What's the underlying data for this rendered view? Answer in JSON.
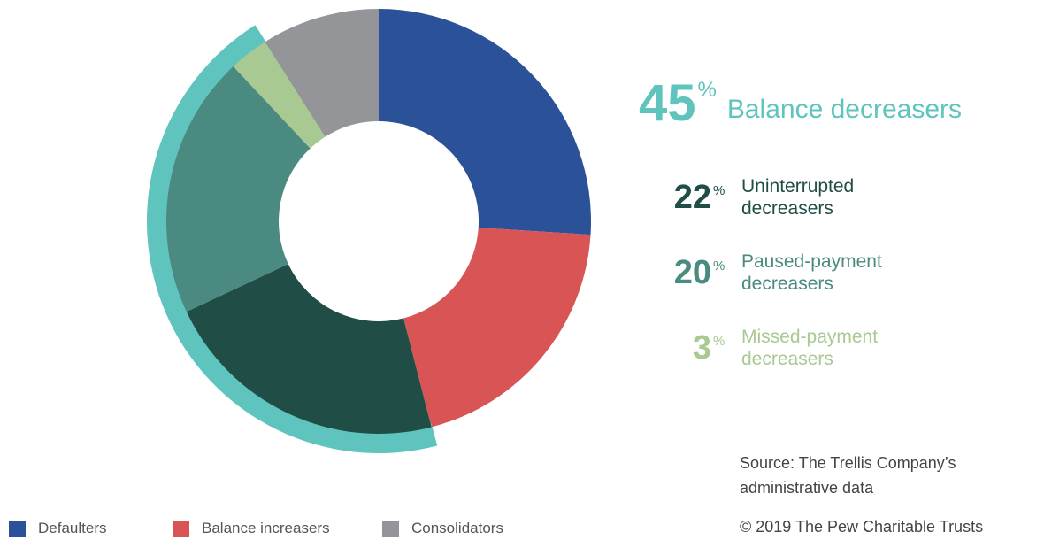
{
  "chart_data": {
    "type": "donut",
    "percent_sign": "%",
    "segments": [
      {
        "name": "Defaulters",
        "value": 26,
        "color": "#2b5299"
      },
      {
        "name": "Balance increasers",
        "value": 20,
        "color": "#d95555"
      },
      {
        "name": "Balance decreasers",
        "value": 45,
        "color": "#5ec4bd",
        "parts": [
          {
            "name": "Uninterrupted decreasers",
            "value": 22,
            "color": "#214d47"
          },
          {
            "name": "Paused-payment decreasers",
            "value": 20,
            "color": "#4a8a80"
          },
          {
            "name": "Missed-payment decreasers",
            "value": 3,
            "color": "#a8c991"
          }
        ]
      },
      {
        "name": "Consolidators",
        "value": 9,
        "color": "#939598"
      }
    ],
    "source": "Source: The Trellis Company’s administrative data",
    "copyright": "© 2019 The Pew Charitable Trusts"
  }
}
